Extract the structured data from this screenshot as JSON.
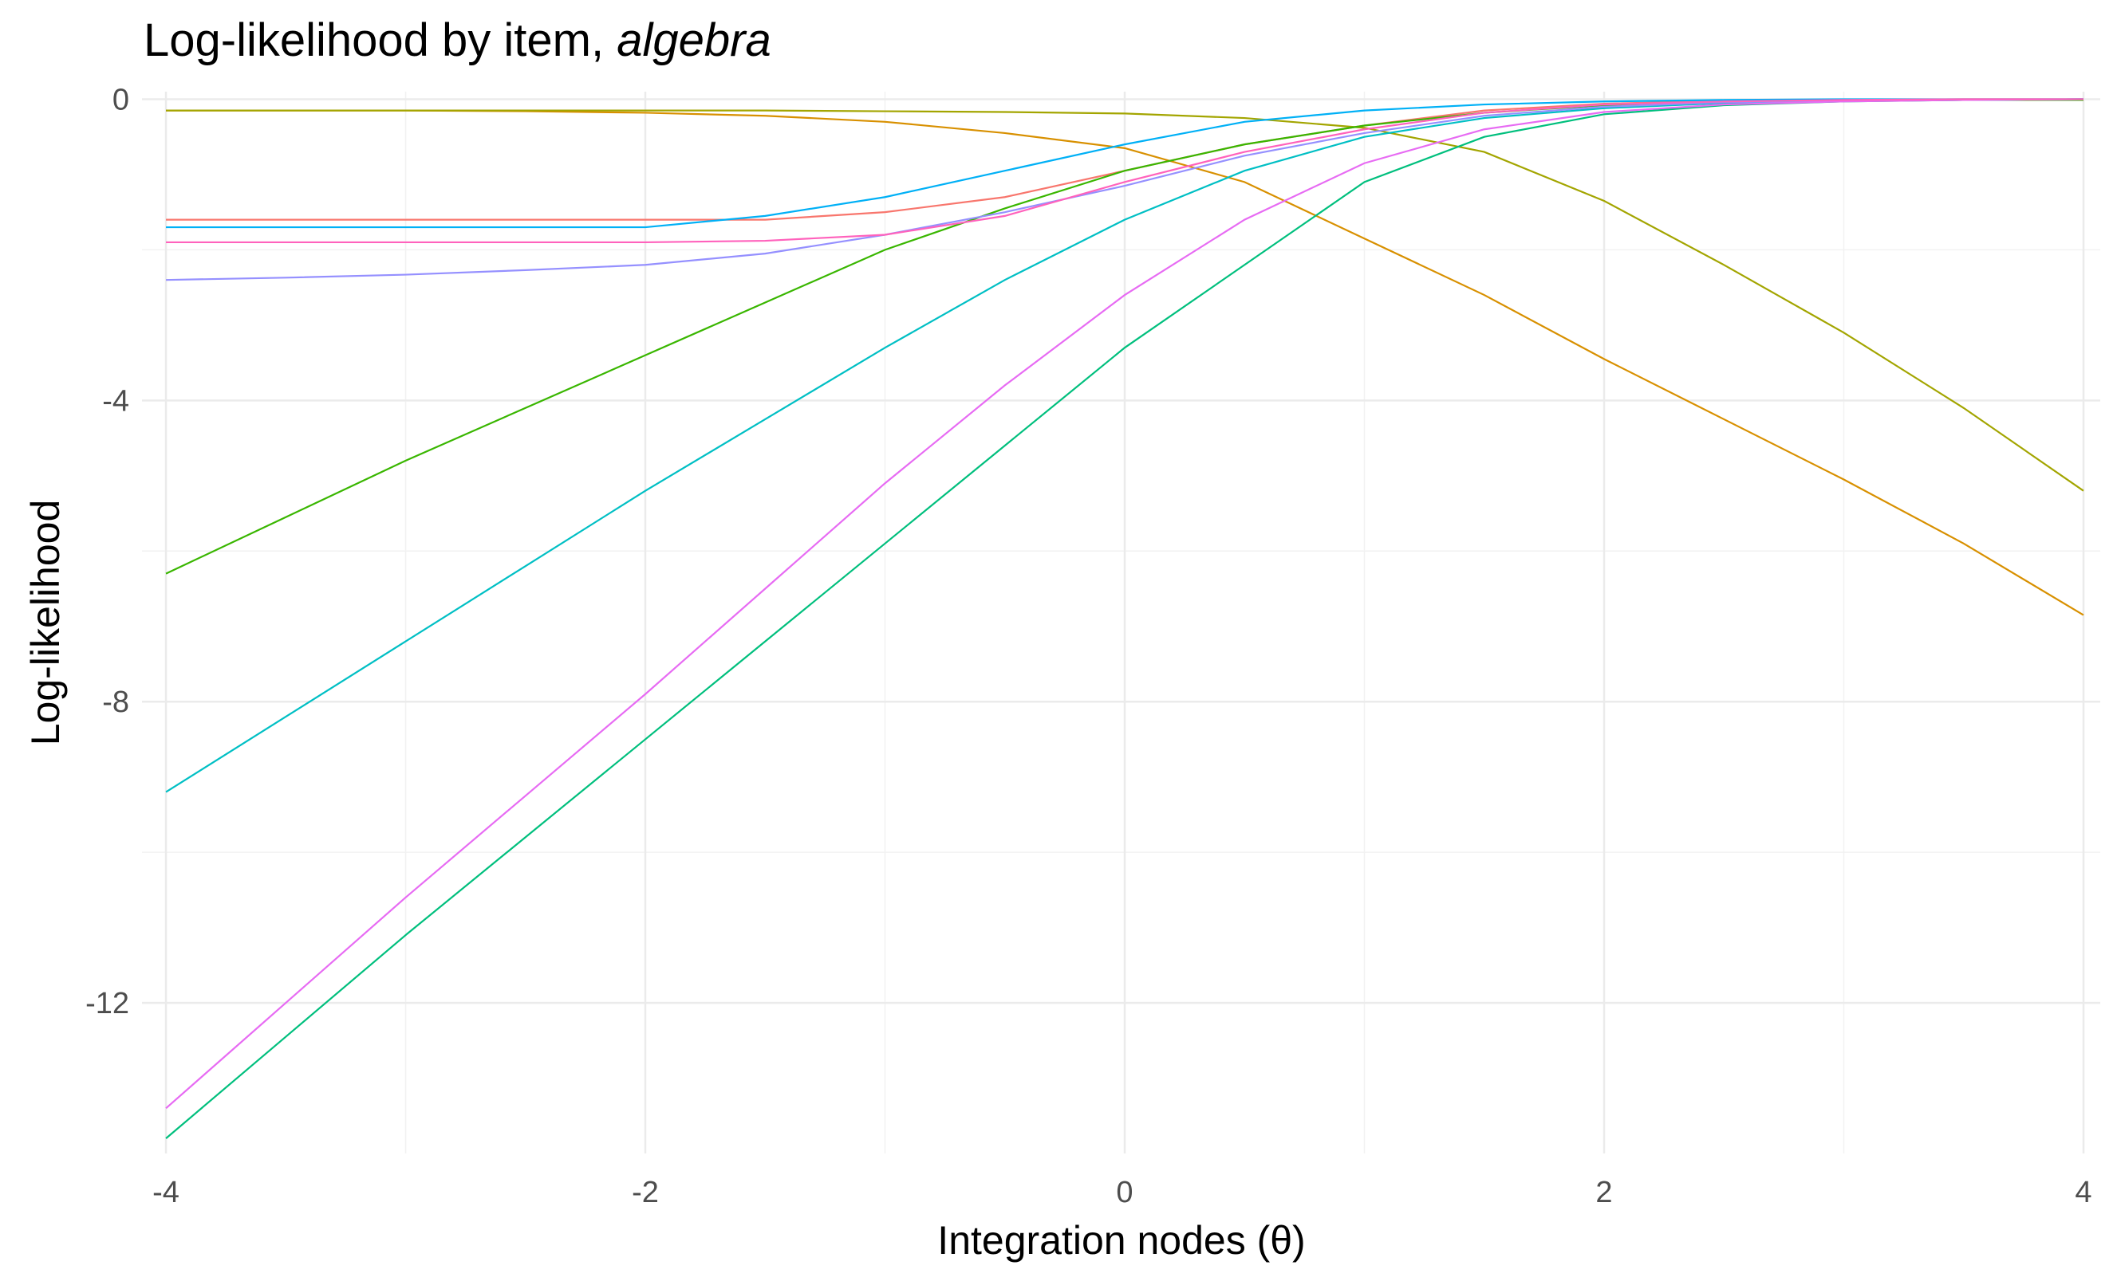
{
  "chart_data": {
    "type": "line",
    "title": "Log-likelihood by item,",
    "title_emphasis": "algebra",
    "x_label": "Integration nodes (θ)",
    "y_label": "Log-likelihood",
    "x": [
      -4,
      -3.5,
      -3,
      -2.5,
      -2,
      -1.5,
      -1,
      -0.5,
      0,
      0.5,
      1,
      1.5,
      2,
      2.5,
      3,
      3.5,
      4
    ],
    "xlim": [
      -4.1,
      4.07
    ],
    "xticks": [
      -4,
      -2,
      0,
      2,
      4
    ],
    "xminor": [
      -3,
      -1,
      1,
      3
    ],
    "ylim": [
      -14.0,
      0.1
    ],
    "yticks": [
      0,
      -4,
      -8,
      -12
    ],
    "yminor": [
      -2,
      -6,
      -10
    ],
    "grid": true,
    "series": [
      {
        "color": "#F8766D",
        "values": [
          -1.6,
          -1.6,
          -1.6,
          -1.6,
          -1.6,
          -1.6,
          -1.5,
          -1.3,
          -0.95,
          -0.6,
          -0.35,
          -0.15,
          -0.06,
          -0.02,
          -0.01,
          0,
          0
        ]
      },
      {
        "color": "#D89000",
        "values": [
          -0.15,
          -0.15,
          -0.15,
          -0.16,
          -0.18,
          -0.22,
          -0.3,
          -0.45,
          -0.65,
          -1.1,
          -1.85,
          -2.6,
          -3.45,
          -4.25,
          -5.05,
          -5.9,
          -6.85
        ]
      },
      {
        "color": "#A3A500",
        "values": [
          -0.15,
          -0.15,
          -0.15,
          -0.15,
          -0.15,
          -0.15,
          -0.16,
          -0.17,
          -0.19,
          -0.25,
          -0.38,
          -0.7,
          -1.35,
          -2.2,
          -3.1,
          -4.1,
          -5.2
        ]
      },
      {
        "color": "#39B600",
        "values": [
          -6.3,
          -5.55,
          -4.8,
          -4.1,
          -3.4,
          -2.7,
          -2.0,
          -1.45,
          -0.95,
          -0.6,
          -0.35,
          -0.18,
          -0.08,
          -0.04,
          -0.02,
          -0.01,
          -0.01
        ]
      },
      {
        "color": "#00BF7D",
        "values": [
          -13.8,
          -12.45,
          -11.1,
          -9.8,
          -8.5,
          -7.2,
          -5.9,
          -4.6,
          -3.3,
          -2.2,
          -1.1,
          -0.5,
          -0.2,
          -0.08,
          -0.03,
          -0.01,
          0
        ]
      },
      {
        "color": "#00BFC4",
        "values": [
          -9.2,
          -8.2,
          -7.2,
          -6.2,
          -5.2,
          -4.25,
          -3.3,
          -2.4,
          -1.6,
          -0.95,
          -0.5,
          -0.25,
          -0.12,
          -0.05,
          -0.02,
          -0.01,
          0
        ]
      },
      {
        "color": "#00B0F6",
        "values": [
          -1.7,
          -1.7,
          -1.7,
          -1.7,
          -1.7,
          -1.55,
          -1.3,
          -0.95,
          -0.6,
          -0.3,
          -0.15,
          -0.07,
          -0.03,
          -0.01,
          0,
          0,
          0
        ]
      },
      {
        "color": "#9590FF",
        "values": [
          -2.4,
          -2.37,
          -2.33,
          -2.27,
          -2.2,
          -2.05,
          -1.8,
          -1.5,
          -1.15,
          -0.75,
          -0.45,
          -0.22,
          -0.1,
          -0.04,
          -0.02,
          -0.01,
          0
        ]
      },
      {
        "color": "#E76BF3",
        "values": [
          -13.4,
          -12.0,
          -10.6,
          -9.25,
          -7.9,
          -6.5,
          -5.1,
          -3.8,
          -2.6,
          -1.6,
          -0.85,
          -0.4,
          -0.17,
          -0.07,
          -0.03,
          -0.01,
          0
        ]
      },
      {
        "color": "#FF62BC",
        "values": [
          -1.9,
          -1.9,
          -1.9,
          -1.9,
          -1.9,
          -1.88,
          -1.8,
          -1.55,
          -1.1,
          -0.7,
          -0.4,
          -0.18,
          -0.07,
          -0.03,
          -0.01,
          0,
          0
        ]
      }
    ]
  }
}
